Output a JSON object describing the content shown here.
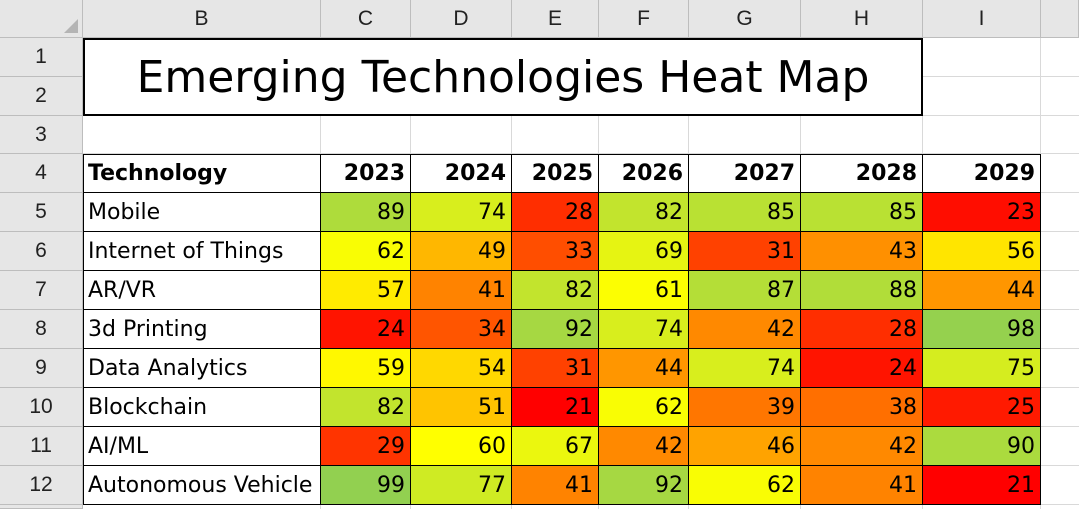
{
  "columns": [
    "B",
    "C",
    "D",
    "E",
    "F",
    "G",
    "H",
    "I"
  ],
  "rows": [
    "1",
    "2",
    "3",
    "4",
    "5",
    "6",
    "7",
    "8",
    "9",
    "10",
    "11",
    "12"
  ],
  "title": "Emerging Technologies Heat Map",
  "table": {
    "header": {
      "label": "Technology",
      "years": [
        "2023",
        "2024",
        "2025",
        "2026",
        "2027",
        "2028",
        "2029"
      ]
    },
    "rows": [
      {
        "name": "Mobile",
        "values": [
          89,
          74,
          28,
          82,
          85,
          85,
          23
        ]
      },
      {
        "name": "Internet of Things",
        "values": [
          62,
          49,
          33,
          69,
          31,
          43,
          56
        ]
      },
      {
        "name": "AR/VR",
        "values": [
          57,
          41,
          82,
          61,
          87,
          88,
          44
        ]
      },
      {
        "name": "3d Printing",
        "values": [
          24,
          34,
          92,
          74,
          42,
          28,
          98
        ]
      },
      {
        "name": "Data Analytics",
        "values": [
          59,
          54,
          31,
          44,
          74,
          24,
          75
        ]
      },
      {
        "name": "Blockchain",
        "values": [
          82,
          51,
          21,
          62,
          39,
          38,
          25
        ]
      },
      {
        "name": "AI/ML",
        "values": [
          29,
          60,
          67,
          42,
          46,
          42,
          90
        ]
      },
      {
        "name": "Autonomous Vehicle",
        "values": [
          99,
          77,
          41,
          92,
          62,
          41,
          21
        ]
      }
    ]
  },
  "heat_colors": {
    "low": "#ff0000",
    "mid": "#ffff00",
    "high": "#92d050"
  }
}
